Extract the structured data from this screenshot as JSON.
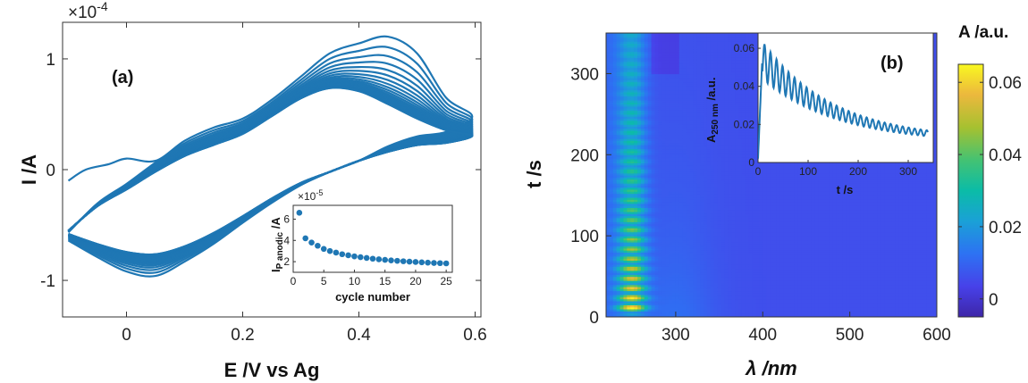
{
  "chart_data": [
    {
      "type": "line",
      "panel_label": "(a)",
      "xlabel": "E /V vs Ag",
      "ylabel": "I /A",
      "exponent_label": "×10",
      "exponent_power": "-4",
      "xlim": [
        -0.11,
        0.61
      ],
      "ylim": [
        -1.33,
        1.33
      ],
      "xticks": [
        "0",
        "0.2",
        "0.4",
        "0.6"
      ],
      "yticks": [
        "-1",
        "0",
        "1"
      ],
      "line_color": "#1f77b4",
      "cycles": 25,
      "anodic_peak_first": {
        "E": 0.45,
        "I": 1.22
      },
      "anodic_peak_second": {
        "E": 0.44,
        "I": 1.12
      },
      "cathodic_peak_first": {
        "E": 0.05,
        "I": -0.93
      },
      "start_point": {
        "E": -0.1,
        "I": -0.1
      },
      "inset": {
        "type": "scatter",
        "xlabel": "cycle number",
        "ylabel_main": "I",
        "ylabel_sub": "P anodic",
        "ylabel_unit": " /A",
        "exponent_label": "×10",
        "exponent_power": "-5",
        "xlim": [
          0,
          26
        ],
        "ylim": [
          1,
          7.3
        ],
        "xticks": [
          "0",
          "5",
          "10",
          "15",
          "20",
          "25"
        ],
        "yticks": [
          "2",
          "4",
          "6"
        ],
        "x": [
          1,
          2,
          3,
          4,
          5,
          6,
          7,
          8,
          9,
          10,
          11,
          12,
          13,
          14,
          15,
          16,
          17,
          18,
          19,
          20,
          21,
          22,
          23,
          24,
          25
        ],
        "y": [
          6.6,
          4.2,
          3.8,
          3.5,
          3.2,
          3.0,
          2.85,
          2.7,
          2.6,
          2.5,
          2.42,
          2.35,
          2.28,
          2.22,
          2.17,
          2.12,
          2.08,
          2.04,
          2.0,
          1.97,
          1.94,
          1.91,
          1.88,
          1.86,
          1.84
        ]
      }
    },
    {
      "type": "heatmap",
      "panel_label": "(b)",
      "xlabel": "λ /nm",
      "ylabel": "t /s",
      "colorbar_title": "A /a.u.",
      "xlim": [
        220,
        600
      ],
      "ylim": [
        0,
        350
      ],
      "xticks": [
        "300",
        "400",
        "500",
        "600"
      ],
      "yticks": [
        "0",
        "100",
        "200",
        "300"
      ],
      "colorbar_ticks": [
        "0",
        "0.02",
        "0.04",
        "0.06"
      ],
      "colorbar_range": [
        -0.005,
        0.065
      ],
      "colormap": "parula",
      "peak_wavelength": 250,
      "inset": {
        "type": "line",
        "xlabel": "t /s",
        "ylabel_main": "A",
        "ylabel_sub": "250 nm",
        "ylabel_unit": " /a.u.",
        "xlim": [
          0,
          350
        ],
        "ylim": [
          0,
          0.068
        ],
        "xticks": [
          "0",
          "100",
          "200",
          "300"
        ],
        "yticks": [
          "0",
          "0.02",
          "0.04",
          "0.06"
        ],
        "peak_t": 25,
        "peak_value": 0.066,
        "end_value": 0.012,
        "oscillation_period": 12
      }
    }
  ]
}
